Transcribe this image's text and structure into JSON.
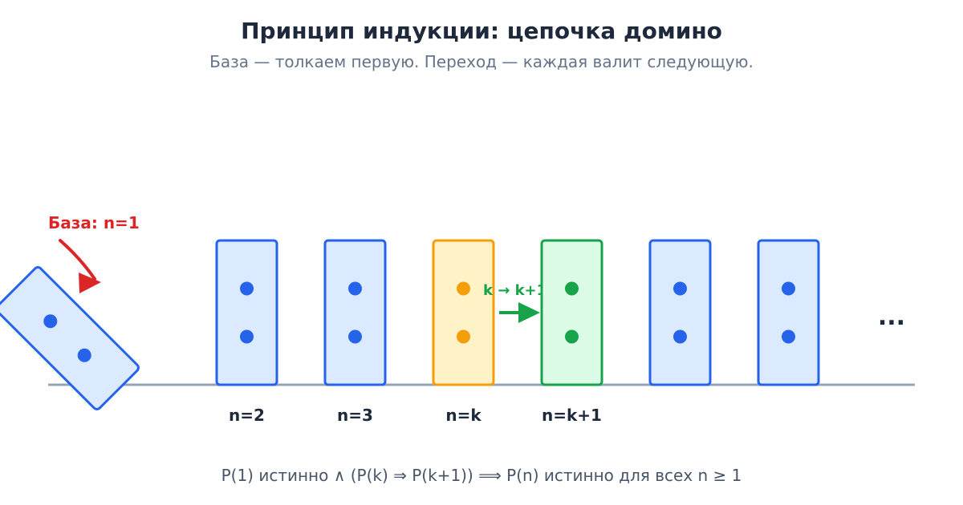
{
  "header": {
    "title": "Принцип индукции: цепочка домино",
    "subtitle": "База — толкаем первую. Переход — каждая валит следующую."
  },
  "base": {
    "label": "База: n=1"
  },
  "step": {
    "label": "k → k+1"
  },
  "dominoes": {
    "labels": [
      "n=2",
      "n=3",
      "n=k",
      "n=k+1",
      "",
      ""
    ]
  },
  "ellipsis": "...",
  "formula": "P(1) истинно ∧ (P(k) ⇒ P(k+1)) ⟹ P(n) истинно для всех n ≥ 1",
  "colors": {
    "title": "#1e293b",
    "subtitle": "#64748b",
    "formula": "#475569",
    "ground": "#94a3b8",
    "blue_stroke": "#2563eb",
    "blue_fill": "#dbeafe",
    "orange_stroke": "#f59e0b",
    "orange_fill": "#fef3c7",
    "green_stroke": "#16a34a",
    "green_fill": "#dcfce7",
    "base_red": "#dc2626"
  }
}
